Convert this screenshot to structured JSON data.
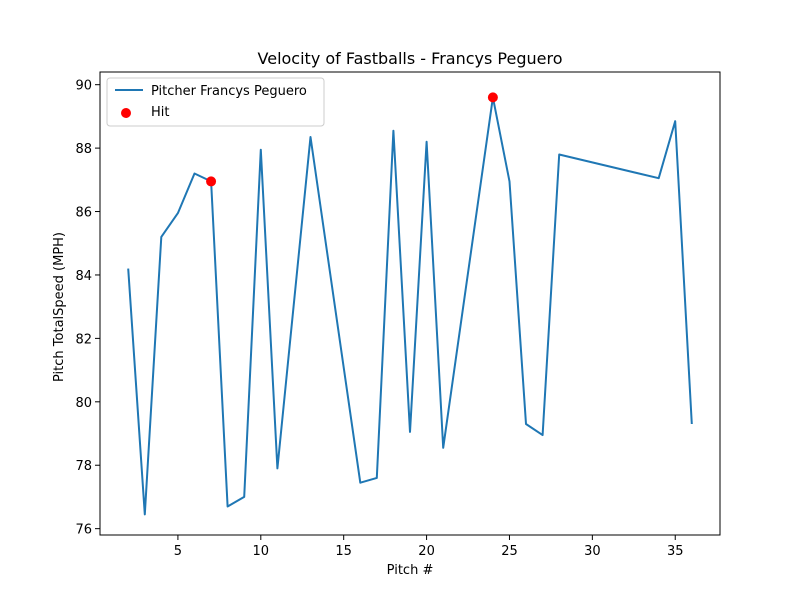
{
  "chart_data": {
    "type": "line",
    "title": "Velocity of Fastballs - Francys Peguero",
    "xlabel": "Pitch #",
    "ylabel": "Pitch TotalSpeed (MPH)",
    "xlim": [
      0.3,
      37.7
    ],
    "ylim": [
      75.8,
      90.4
    ],
    "xticks": [
      5,
      10,
      15,
      20,
      25,
      30,
      35
    ],
    "yticks": [
      76,
      78,
      80,
      82,
      84,
      86,
      88,
      90
    ],
    "grid": false,
    "legend_position": "top-left",
    "series": [
      {
        "name": "Pitcher Francys Peguero",
        "kind": "line",
        "color": "#1f77b4",
        "x": [
          2,
          3,
          4,
          5,
          6,
          7,
          8,
          9,
          10,
          11,
          13,
          16,
          17,
          18,
          19,
          20,
          21,
          24,
          25,
          26,
          27,
          28,
          34,
          35,
          36
        ],
        "y": [
          84.2,
          76.45,
          85.2,
          85.95,
          87.2,
          86.95,
          76.7,
          77.0,
          87.95,
          77.9,
          88.35,
          77.45,
          77.6,
          88.55,
          79.05,
          88.2,
          78.55,
          89.6,
          86.95,
          79.3,
          78.95,
          87.8,
          87.05,
          88.85,
          79.3
        ]
      },
      {
        "name": "Hit",
        "kind": "scatter",
        "color": "#ff0000",
        "x": [
          7,
          24
        ],
        "y": [
          86.95,
          89.6
        ]
      }
    ]
  }
}
